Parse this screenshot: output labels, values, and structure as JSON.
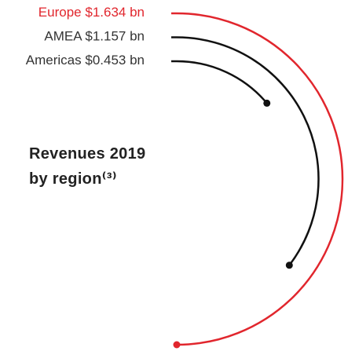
{
  "chart_data": {
    "type": "radial_bar",
    "title": "Revenues 2019 by region⁽³⁾",
    "categories": [
      "Europe",
      "AMEA",
      "Americas"
    ],
    "values": [
      1.634,
      1.157,
      0.453
    ],
    "value_labels": [
      "$1.634 bn",
      "$1.157 bn",
      "$0.453 bn"
    ],
    "colors": [
      "#e1262d",
      "#111111",
      "#111111"
    ]
  }
}
